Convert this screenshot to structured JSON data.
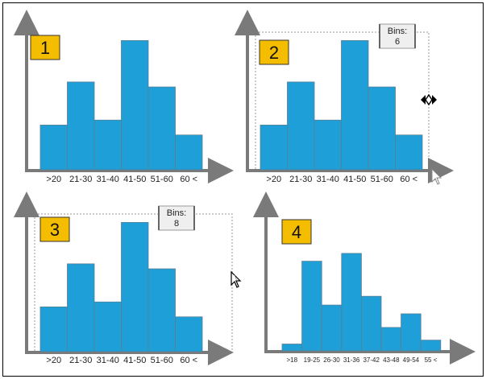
{
  "colors": {
    "bar": "#1e9fd8",
    "bar_border": "#5a7f93",
    "axis": "#7a7a7a",
    "badge": "#f5bd00",
    "badge_border": "#333333"
  },
  "panels": [
    {
      "badge": "1",
      "bins_label": "",
      "bins_value": "",
      "chart_data": {
        "type": "bar",
        "categories": [
          ">20",
          "21-30",
          "31-40",
          "41-50",
          "51-60",
          "60 <"
        ],
        "values": [
          2.7,
          5.3,
          3.0,
          7.8,
          5.0,
          2.1
        ],
        "ylim": [
          0,
          8.5
        ]
      }
    },
    {
      "badge": "2",
      "bins_label": "Bins:",
      "bins_value": "6",
      "chart_data": {
        "type": "bar",
        "categories": [
          ">20",
          "21-30",
          "31-40",
          "41-50",
          "51-60",
          "60 <"
        ],
        "values": [
          2.7,
          5.3,
          3.0,
          7.8,
          5.0,
          2.1
        ],
        "ylim": [
          0,
          8.5
        ]
      }
    },
    {
      "badge": "3",
      "bins_label": "Bins:",
      "bins_value": "8",
      "chart_data": {
        "type": "bar",
        "categories": [
          ">20",
          "21-30",
          "31-40",
          "41-50",
          "51-60",
          "60 <"
        ],
        "values": [
          2.7,
          5.3,
          3.0,
          7.8,
          5.0,
          2.1
        ],
        "ylim": [
          0,
          8.5
        ]
      }
    },
    {
      "badge": "4",
      "bins_label": "",
      "bins_value": "",
      "chart_data": {
        "type": "bar",
        "categories": [
          ">18",
          "19-25",
          "26-30",
          "31-36",
          "37-42",
          "43-48",
          "49-54",
          "55 <"
        ],
        "values": [
          0.35,
          4.6,
          2.35,
          5.0,
          2.8,
          1.2,
          1.9,
          0.55
        ],
        "ylim": [
          0,
          6.4
        ]
      }
    }
  ]
}
